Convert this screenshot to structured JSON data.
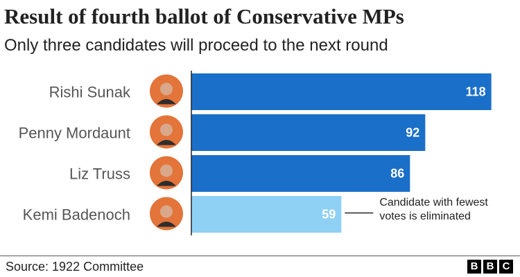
{
  "header": {
    "title": "Result of fourth ballot of Conservative MPs",
    "subtitle": "Only three candidates will proceed to the next round"
  },
  "footer": {
    "source": "Source: 1922 Committee",
    "logo_letters": [
      "B",
      "B",
      "C"
    ]
  },
  "colors": {
    "proceed": "#1a6fc9",
    "eliminated": "#8fd0f5",
    "axis": "#222222"
  },
  "chart_data": {
    "type": "bar",
    "orientation": "horizontal",
    "categories": [
      "Rishi Sunak",
      "Penny Mordaunt",
      "Liz Truss",
      "Kemi Badenoch"
    ],
    "values": [
      118,
      92,
      86,
      59
    ],
    "status": [
      "proceed",
      "proceed",
      "proceed",
      "eliminated"
    ],
    "xlim": [
      0,
      120
    ],
    "grid": false,
    "annotation": {
      "target": "Kemi Badenoch",
      "lines": [
        "Candidate with fewest",
        "votes is eliminated"
      ]
    }
  }
}
